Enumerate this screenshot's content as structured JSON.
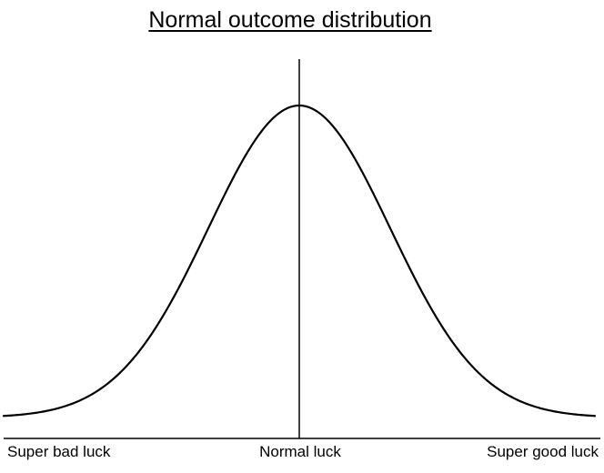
{
  "title": "Normal outcome distribution",
  "chart_data": {
    "type": "line",
    "distribution": "normal",
    "x_labels": [
      "Super bad luck",
      "Normal luck",
      "Super good luck"
    ],
    "center_marker": "Normal luck",
    "grid": false,
    "legend": "none"
  },
  "colors": {
    "line": "#000000",
    "background": "#ffffff"
  }
}
